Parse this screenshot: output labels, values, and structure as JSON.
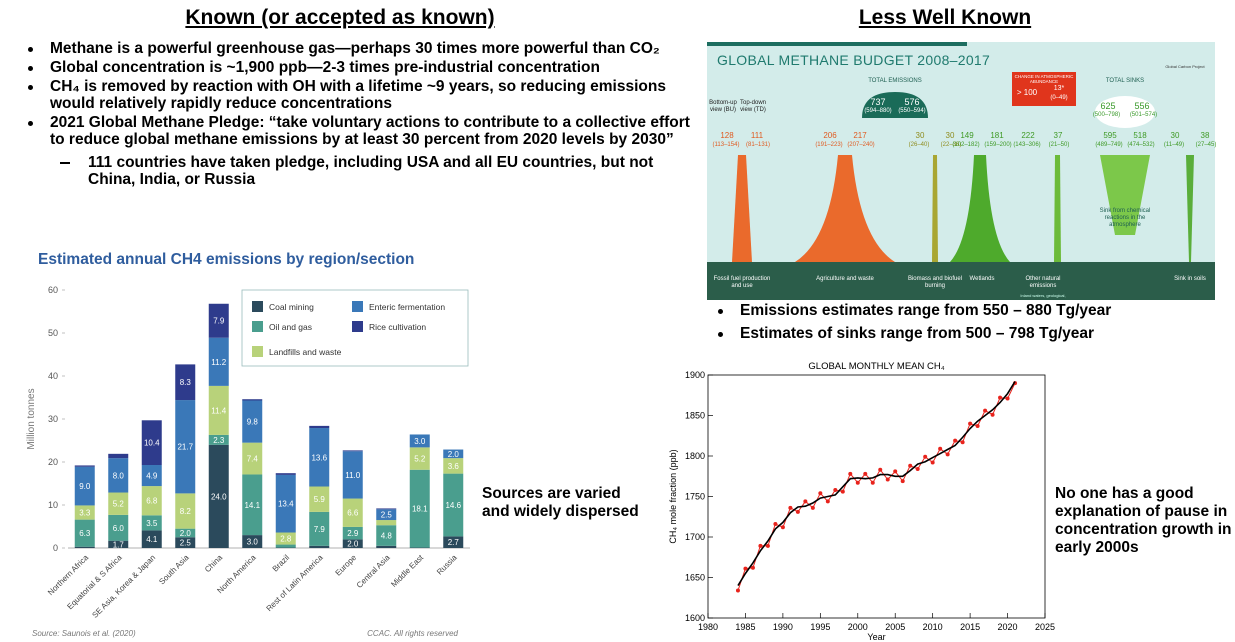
{
  "left": {
    "heading": "Known (or accepted as known)",
    "bullets": [
      "Methane is a powerful greenhouse gas—perhaps 30 times more powerful than CO₂",
      "Global concentration is ~1,900 ppb—2-3 times pre-industrial concentration",
      "CH₄ is removed by reaction with OH with a lifetime ~9 years, so reducing emissions would relatively rapidly reduce concentrations",
      "2021 Global Methane Pledge: “take voluntary actions to contribute to a collective effort to reduce global methane emissions by at least 30 percent from 2020 levels by 2030”"
    ],
    "sub_bullet": "111 countries have taken pledge, including USA and all EU countries, but not China, India, or Russia",
    "note": "Sources are varied and widely dispersed"
  },
  "right": {
    "heading": "Less Well Known",
    "bullets": [
      "Emissions estimates range from 550 – 880 Tg/year",
      "Estimates of sinks range from 500 – 798 Tg/year"
    ],
    "note": "No one has a good explanation of pause in concentration growth in early 2000s"
  },
  "budget": {
    "title": "GLOBAL METHANE BUDGET 2008–2017",
    "credit": "Global Carbon Project",
    "bu_label": "Bottom-up view (BU)",
    "td_label": "Top-down view (TD)",
    "total_emissions": {
      "label": "TOTAL EMISSIONS",
      "bu": "737",
      "bu_range": "(594–880)",
      "td": "576",
      "td_range": "(550–594)"
    },
    "change": {
      "label": "CHANGE IN ATMOSPHERIC ABUNDANCE",
      "bu": "> 100",
      "td": "13*",
      "td_range": "(0–49)"
    },
    "total_sinks": {
      "label": "TOTAL SINKS",
      "bu": "625",
      "bu_range": "(500–798)",
      "td": "556",
      "td_range": "(501–574)"
    },
    "sources": [
      {
        "name": "Fossil fuel production and use",
        "bu": "128",
        "bu_range": "(113–154)",
        "td": "111",
        "td_range": "(81–131)"
      },
      {
        "name": "Agriculture and waste",
        "bu": "206",
        "bu_range": "(191–223)",
        "td": "217",
        "td_range": "(207–240)"
      },
      {
        "name": "Biomass and biofuel burning",
        "bu": "30",
        "bu_range": "(26–40)",
        "td": "30",
        "td_range": "(22–36)"
      },
      {
        "name": "Wetlands",
        "bu": "149",
        "bu_range": "(102–182)",
        "td": "181",
        "td_range": "(159–200)"
      },
      {
        "name": "Other natural emissions",
        "bu": "222",
        "bu_range": "(143–306)",
        "td": "37",
        "td_range": "(21–50)"
      },
      {
        "name": "Sink from chemical reactions in the atmosphere",
        "bu": "595",
        "bu_range": "(489–749)",
        "td": "518",
        "td_range": "(474–532)"
      },
      {
        "name": "Sink in soils",
        "bu": "30",
        "bu_range": "(11–49)",
        "td": "38",
        "td_range": "(27–45)"
      }
    ],
    "other_note": "Inland waters, geological,"
  },
  "chart_data": [
    {
      "type": "stacked-bar",
      "title": "Estimated annual CH4 emissions by region/section",
      "ylabel": "Million tonnes",
      "source": "Source: Saunois et al. (2020)",
      "credit": "CCAC. All rights reserved",
      "categories": [
        "Northern Africa",
        "Equatorial & S Africa",
        "SE Asia, Korea & Japan",
        "South Asia",
        "China",
        "North America",
        "Brazil",
        "Rest of Latin America",
        "Europe",
        "Central Asia",
        "Middle East",
        "Russia"
      ],
      "ylim": [
        0,
        60
      ],
      "yticks": [
        0,
        10,
        20,
        30,
        40,
        50,
        60
      ],
      "grid": false,
      "legend": "top-right",
      "series": [
        {
          "name": "Coal mining",
          "color": "#2b4a5c",
          "values": [
            0.3,
            1.7,
            4.1,
            2.5,
            24.0,
            3.0,
            0.1,
            0.5,
            2.0,
            0.5,
            0.1,
            2.7
          ],
          "value_labels": [
            null,
            "1.7",
            "4.1",
            "2.5",
            "24.0",
            "3.0",
            null,
            null,
            "2.0",
            null,
            null,
            "2.7"
          ]
        },
        {
          "name": "Oil and gas",
          "color": "#4a9e8e",
          "values": [
            6.3,
            6.0,
            3.5,
            2.0,
            2.3,
            14.1,
            0.7,
            7.9,
            2.9,
            4.8,
            18.1,
            14.6
          ],
          "value_labels": [
            "6.3",
            "6.0",
            "3.5",
            "2.0",
            "2.3",
            "14.1",
            null,
            "7.9",
            "2.9",
            "4.8",
            "18.1",
            "14.6"
          ]
        },
        {
          "name": "Landfills and waste",
          "color": "#b8d27a",
          "values": [
            3.3,
            5.2,
            6.8,
            8.2,
            11.4,
            7.4,
            2.8,
            5.9,
            6.6,
            1.2,
            5.2,
            3.6
          ],
          "value_labels": [
            "3.3",
            "5.2",
            "6.8",
            "8.2",
            "11.4",
            "7.4",
            "2.8",
            "5.9",
            "6.6",
            null,
            "5.2",
            "3.6"
          ]
        },
        {
          "name": "Enteric fermentation",
          "color": "#3a78b8",
          "values": [
            9.0,
            8.0,
            4.9,
            21.7,
            11.2,
            9.8,
            13.4,
            13.6,
            11.0,
            2.5,
            3.0,
            2.0
          ],
          "value_labels": [
            "9.0",
            "8.0",
            "4.9",
            "21.7",
            "11.2",
            "9.8",
            "13.4",
            "13.6",
            "11.0",
            "2.5",
            "3.0",
            "2.0"
          ]
        },
        {
          "name": "Rice cultivation",
          "color": "#2e3b8c",
          "values": [
            0.3,
            1.0,
            10.4,
            8.3,
            7.9,
            0.3,
            0.4,
            0.5,
            0.2,
            0.2,
            0,
            0
          ],
          "value_labels": [
            null,
            null,
            "10.4",
            "8.3",
            "7.9",
            null,
            null,
            null,
            null,
            null,
            null,
            null
          ]
        }
      ]
    },
    {
      "type": "line",
      "title": "GLOBAL MONTHLY MEAN CH₄",
      "xlabel": "Year",
      "ylabel": "CH₄ mole fraction (ppb)",
      "xlim": [
        1980,
        2025
      ],
      "xticks": [
        1980,
        1985,
        1990,
        1995,
        2000,
        2005,
        2010,
        2015,
        2020,
        2025
      ],
      "ylim": [
        1600,
        1900
      ],
      "yticks": [
        1600,
        1650,
        1700,
        1750,
        1800,
        1850,
        1900
      ],
      "grid": false,
      "x": [
        1984,
        1985,
        1986,
        1987,
        1988,
        1989,
        1990,
        1991,
        1992,
        1993,
        1994,
        1995,
        1996,
        1997,
        1998,
        1999,
        2000,
        2001,
        2002,
        2003,
        2004,
        2005,
        2006,
        2007,
        2008,
        2009,
        2010,
        2011,
        2012,
        2013,
        2014,
        2015,
        2016,
        2017,
        2018,
        2019,
        2020,
        2021
      ],
      "series": [
        {
          "color": "#e8231c",
          "markers": true,
          "values": [
            1634,
            1661,
            1662,
            1689,
            1689,
            1716,
            1712,
            1736,
            1731,
            1744,
            1736,
            1754,
            1744,
            1758,
            1756,
            1778,
            1767,
            1778,
            1767,
            1783,
            1771,
            1781,
            1769,
            1788,
            1784,
            1799,
            1792,
            1809,
            1802,
            1819,
            1817,
            1840,
            1837,
            1856,
            1851,
            1872,
            1871,
            1890
          ]
        },
        {
          "color": "#000000",
          "markers": false,
          "values": [
            1640,
            1655,
            1668,
            1683,
            1695,
            1710,
            1718,
            1730,
            1737,
            1738,
            1742,
            1748,
            1750,
            1752,
            1762,
            1772,
            1773,
            1772,
            1773,
            1777,
            1777,
            1775,
            1775,
            1782,
            1790,
            1793,
            1798,
            1803,
            1808,
            1813,
            1823,
            1834,
            1843,
            1850,
            1857,
            1866,
            1877,
            1892
          ]
        }
      ]
    }
  ]
}
